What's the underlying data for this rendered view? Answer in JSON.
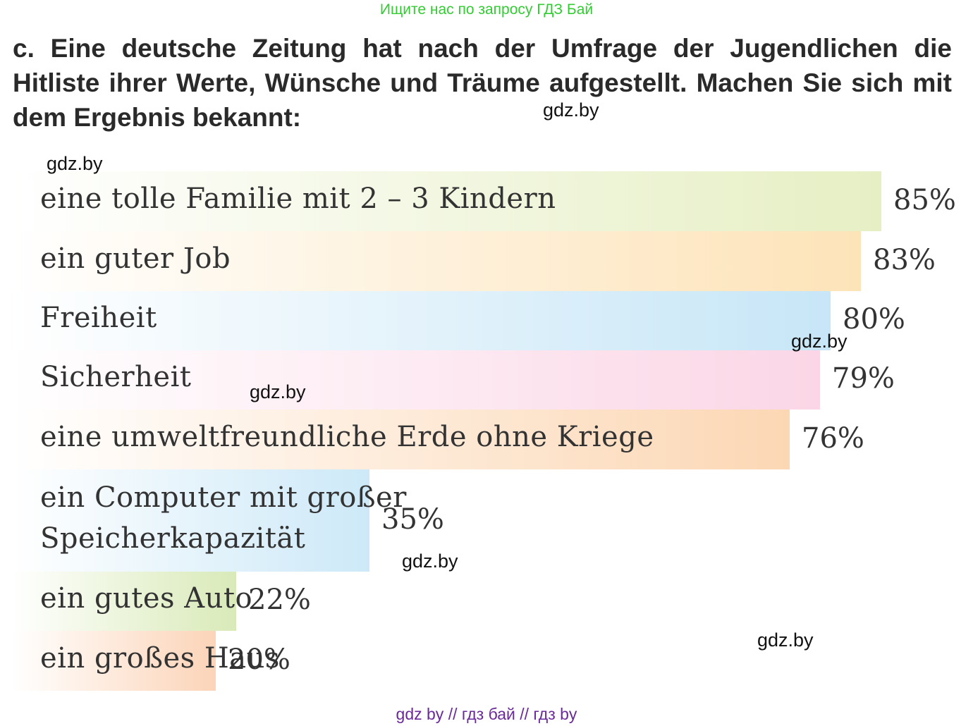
{
  "header": {
    "banner": "Ищите нас по запросу ГДЗ Бай",
    "task": "c. Eine deutsche Zeitung hat nach der Umfrage der Jugendlichen die Hitliste ihrer Werte, Wünsche und Träume aufgestellt. Machen Sie sich mit dem Ergebnis bekannt:"
  },
  "watermarks": [
    "gdz.by",
    "gdz.by",
    "gdz.by",
    "gdz.by",
    "gdz.by",
    "gdz.by"
  ],
  "footer": {
    "text": "gdz by  //  гдз бай  //  гдз by"
  },
  "colors": {
    "green": "#e6efc4",
    "orange": "#fde3b8",
    "blue": "#c7e6f7",
    "pink": "#fbd6e6",
    "peach": "#fcd7b4",
    "lightblue": "#cde9f8",
    "olive": "#d9eab8",
    "salmon": "#fcd4b8"
  },
  "chart_data": {
    "type": "bar",
    "orientation": "horizontal",
    "unit": "%",
    "xlim": [
      0,
      100
    ],
    "categories": [
      "eine tolle Familie mit 2 – 3 Kindern",
      "ein guter Job",
      "Freiheit",
      "Sicherheit",
      "eine umweltfreundliche Erde ohne Kriege",
      "ein Computer mit großer Speicherkapazität",
      "ein gutes Auto",
      "ein großes Haus"
    ],
    "category_lines": [
      [
        "eine tolle Familie mit 2 – 3 Kindern"
      ],
      [
        "ein guter Job"
      ],
      [
        "Freiheit"
      ],
      [
        "Sicherheit"
      ],
      [
        "eine umweltfreundliche Erde ohne Kriege"
      ],
      [
        "ein Computer mit großer",
        "Speicherkapazität"
      ],
      [
        "ein gutes Auto"
      ],
      [
        "ein großes Haus"
      ]
    ],
    "values": [
      85,
      83,
      80,
      79,
      76,
      35,
      22,
      20
    ],
    "value_labels": [
      "85%",
      "83%",
      "80%",
      "79%",
      "76%",
      "35%",
      "22%",
      "20%"
    ],
    "bar_colors": [
      "green",
      "orange",
      "blue",
      "pink",
      "peach",
      "lightblue",
      "olive",
      "salmon"
    ]
  }
}
